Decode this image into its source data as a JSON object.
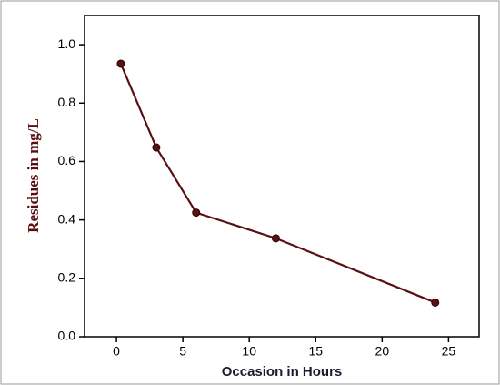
{
  "chart_data": {
    "type": "line",
    "x_label": "Occasion in Hours",
    "y_label": "Residues in mg/L",
    "x": [
      0.33,
      3,
      6,
      12,
      24
    ],
    "series": [
      {
        "name": "Residues",
        "color": "#5a0f12",
        "values": [
          0.935,
          0.648,
          0.425,
          0.337,
          0.117
        ]
      }
    ],
    "xlim": [
      -2.4,
      27.3
    ],
    "xticks": [
      0,
      5,
      10,
      15,
      20,
      25
    ],
    "ylim": [
      0,
      1.1
    ],
    "yticks": [
      {
        "value": 0,
        "label": "0.0"
      },
      0.2,
      0.4,
      0.6,
      0.8,
      {
        "value": 1,
        "label": "1.0"
      }
    ]
  }
}
